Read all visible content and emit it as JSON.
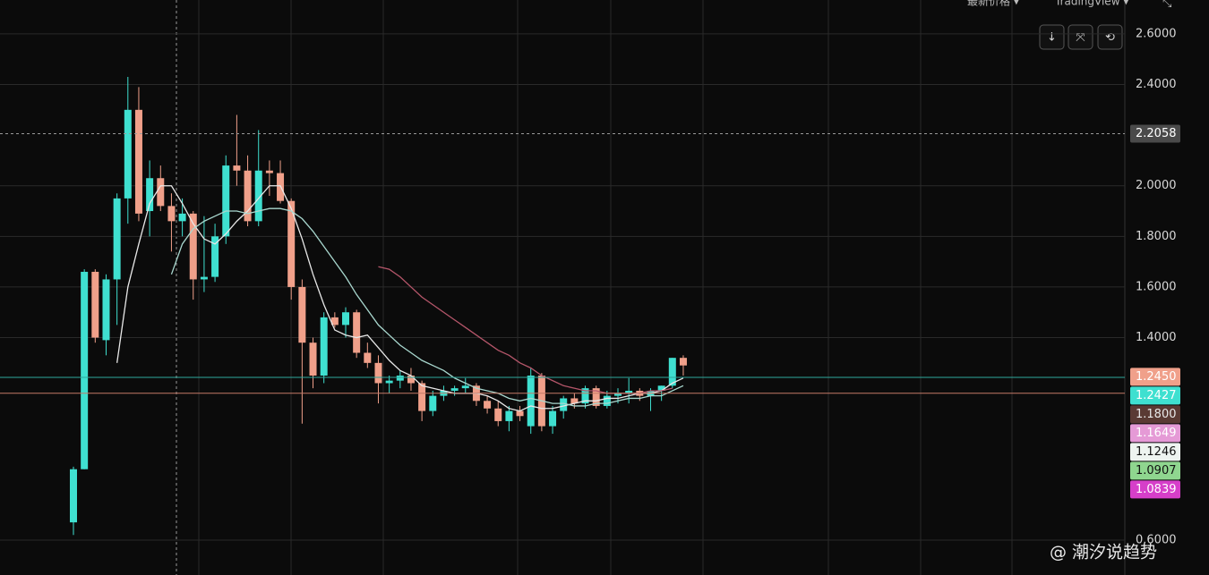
{
  "toolbar": [
    "最新价格 ▾",
    "TradingView ▾"
  ],
  "watermark": "@ 潮汐说趋势",
  "chart_data": {
    "type": "candlestick",
    "up_color": "#3fe0d0",
    "down_color": "#f0a08a",
    "ylim": [
      0.462,
      2.734
    ],
    "yticks": [
      {
        "value": 0.6,
        "label": "0.6000"
      },
      {
        "value": 1.4,
        "label": "1.4000"
      },
      {
        "value": 1.6,
        "label": "1.6000"
      },
      {
        "value": 1.8,
        "label": "1.8000"
      },
      {
        "value": 2.0,
        "label": "2.0000"
      },
      {
        "value": 2.4,
        "label": "2.4000"
      },
      {
        "value": 2.6,
        "label": "2.6000"
      }
    ],
    "grid": true,
    "candles": [
      [
        0.67,
        0.89,
        0.62,
        0.88
      ],
      [
        0.88,
        1.67,
        0.88,
        1.66
      ],
      [
        1.66,
        1.67,
        1.38,
        1.4
      ],
      [
        1.39,
        1.65,
        1.33,
        1.63
      ],
      [
        1.63,
        1.97,
        1.45,
        1.95
      ],
      [
        1.95,
        2.43,
        1.85,
        2.3
      ],
      [
        2.3,
        2.39,
        1.86,
        1.89
      ],
      [
        1.9,
        2.1,
        1.8,
        2.03
      ],
      [
        2.03,
        2.08,
        1.9,
        1.92
      ],
      [
        1.92,
        1.97,
        1.74,
        1.86
      ],
      [
        1.86,
        1.95,
        1.8,
        1.89
      ],
      [
        1.89,
        1.9,
        1.55,
        1.63
      ],
      [
        1.63,
        1.88,
        1.58,
        1.64
      ],
      [
        1.64,
        1.85,
        1.62,
        1.8
      ],
      [
        1.8,
        2.12,
        1.77,
        2.08
      ],
      [
        2.08,
        2.28,
        2.0,
        2.06
      ],
      [
        2.06,
        2.12,
        1.84,
        1.86
      ],
      [
        1.86,
        2.22,
        1.84,
        2.06
      ],
      [
        2.06,
        2.1,
        1.96,
        2.05
      ],
      [
        2.05,
        2.1,
        1.93,
        1.94
      ],
      [
        1.94,
        1.95,
        1.55,
        1.6
      ],
      [
        1.6,
        1.63,
        1.06,
        1.38
      ],
      [
        1.38,
        1.4,
        1.2,
        1.25
      ],
      [
        1.25,
        1.5,
        1.22,
        1.48
      ],
      [
        1.48,
        1.5,
        1.44,
        1.45
      ],
      [
        1.45,
        1.52,
        1.4,
        1.5
      ],
      [
        1.5,
        1.51,
        1.32,
        1.34
      ],
      [
        1.34,
        1.38,
        1.28,
        1.3
      ],
      [
        1.3,
        1.33,
        1.14,
        1.22
      ],
      [
        1.22,
        1.25,
        1.18,
        1.23
      ],
      [
        1.23,
        1.27,
        1.2,
        1.25
      ],
      [
        1.25,
        1.28,
        1.19,
        1.22
      ],
      [
        1.22,
        1.23,
        1.07,
        1.11
      ],
      [
        1.11,
        1.19,
        1.09,
        1.17
      ],
      [
        1.17,
        1.21,
        1.15,
        1.19
      ],
      [
        1.19,
        1.21,
        1.17,
        1.2
      ],
      [
        1.2,
        1.24,
        1.18,
        1.21
      ],
      [
        1.21,
        1.22,
        1.13,
        1.15
      ],
      [
        1.15,
        1.17,
        1.1,
        1.12
      ],
      [
        1.12,
        1.15,
        1.05,
        1.07
      ],
      [
        1.07,
        1.13,
        1.03,
        1.11
      ],
      [
        1.11,
        1.13,
        1.07,
        1.09
      ],
      [
        1.05,
        1.28,
        1.02,
        1.25
      ],
      [
        1.25,
        1.26,
        1.03,
        1.05
      ],
      [
        1.05,
        1.13,
        1.02,
        1.11
      ],
      [
        1.11,
        1.17,
        1.08,
        1.16
      ],
      [
        1.16,
        1.18,
        1.12,
        1.14
      ],
      [
        1.14,
        1.21,
        1.12,
        1.2
      ],
      [
        1.2,
        1.21,
        1.12,
        1.13
      ],
      [
        1.13,
        1.19,
        1.12,
        1.17
      ],
      [
        1.17,
        1.2,
        1.14,
        1.18
      ],
      [
        1.18,
        1.24,
        1.14,
        1.19
      ],
      [
        1.19,
        1.2,
        1.15,
        1.17
      ],
      [
        1.17,
        1.2,
        1.11,
        1.19
      ],
      [
        1.19,
        1.21,
        1.15,
        1.21
      ],
      [
        1.21,
        1.32,
        1.2,
        1.32
      ],
      [
        1.32,
        1.33,
        1.25,
        1.29
      ]
    ],
    "series": [
      {
        "color": "#e8e8e8",
        "values": [
          null,
          null,
          null,
          null,
          1.3,
          1.6,
          1.77,
          1.93,
          2.0,
          2.0,
          1.93,
          1.85,
          1.79,
          1.77,
          1.81,
          1.86,
          1.9,
          1.95,
          2.0,
          2.0,
          1.91,
          1.79,
          1.65,
          1.53,
          1.43,
          1.41,
          1.4,
          1.41,
          1.36,
          1.31,
          1.27,
          1.25,
          1.21,
          1.2,
          1.19,
          1.18,
          1.18,
          1.18,
          1.17,
          1.15,
          1.12,
          1.11,
          1.13,
          1.12,
          1.12,
          1.13,
          1.14,
          1.15,
          1.15,
          1.16,
          1.16,
          1.17,
          1.18,
          1.18,
          1.19,
          1.22,
          1.24
        ]
      },
      {
        "color": "#a9d8cf",
        "values": [
          null,
          null,
          null,
          null,
          null,
          null,
          null,
          null,
          null,
          1.65,
          1.77,
          1.83,
          1.86,
          1.88,
          1.9,
          1.9,
          1.89,
          1.9,
          1.91,
          1.91,
          1.9,
          1.87,
          1.82,
          1.76,
          1.7,
          1.64,
          1.57,
          1.51,
          1.45,
          1.41,
          1.37,
          1.34,
          1.31,
          1.29,
          1.27,
          1.24,
          1.22,
          1.2,
          1.19,
          1.18,
          1.16,
          1.15,
          1.16,
          1.15,
          1.14,
          1.14,
          1.13,
          1.13,
          1.14,
          1.14,
          1.15,
          1.16,
          1.16,
          1.17,
          1.17,
          1.19,
          1.21
        ]
      },
      {
        "color": "#b5566a",
        "values": [
          null,
          null,
          null,
          null,
          null,
          null,
          null,
          null,
          null,
          null,
          null,
          null,
          null,
          null,
          null,
          null,
          null,
          null,
          null,
          null,
          null,
          null,
          null,
          null,
          null,
          null,
          null,
          null,
          1.68,
          1.67,
          1.64,
          1.6,
          1.56,
          1.53,
          1.5,
          1.47,
          1.44,
          1.41,
          1.38,
          1.35,
          1.33,
          1.3,
          1.28,
          1.25,
          1.23,
          1.21,
          1.2,
          1.19,
          1.19,
          1.18,
          1.18,
          1.18,
          1.18,
          1.19,
          1.19,
          1.2,
          null
        ]
      }
    ],
    "price_labels": [
      {
        "value": 2.2058,
        "label": "2.2058",
        "color": "#4a4a4a",
        "text_color": "#ffffff",
        "line_color": "#9a9a9a",
        "line_style": "dashed"
      },
      {
        "value": 1.245,
        "label": "1.2450",
        "color": "#f0a08a",
        "text_color": "#ffffff"
      },
      {
        "value": 1.2427,
        "label": "1.2427",
        "color": "#3fe0d0",
        "text_color": "#ffffff",
        "line_color": "#2fa99c",
        "line_style": "solid"
      },
      {
        "value": 1.18,
        "label": "1.1800",
        "color": "#5a3a34",
        "text_color": "#e8e8e8",
        "line_color": "#c47a68",
        "line_style": "solid"
      },
      {
        "value": 1.1649,
        "label": "1.1649",
        "color": "#e59ad6",
        "text_color": "#ffffff"
      },
      {
        "value": 1.1246,
        "label": "1.1246",
        "color": "#eef4f0",
        "text_color": "#111111"
      },
      {
        "value": 1.0907,
        "label": "1.0907",
        "color": "#8fd68f",
        "text_color": "#111111"
      },
      {
        "value": 1.0839,
        "label": "1.0839",
        "color": "#d63fc9",
        "text_color": "#ffffff"
      }
    ]
  }
}
